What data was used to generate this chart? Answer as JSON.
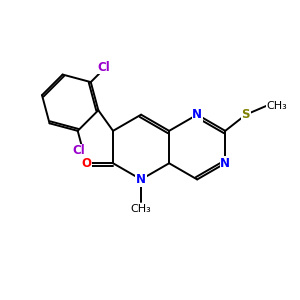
{
  "background_color": "#ffffff",
  "figsize": [
    3.0,
    3.0
  ],
  "dpi": 100,
  "atom_colors": {
    "N": "#0000ff",
    "O": "#ff0000",
    "Cl": "#9900cc",
    "S": "#808000",
    "C": "#000000"
  },
  "bond_color": "#000000",
  "bond_lw": 1.4,
  "xlim": [
    0,
    10
  ],
  "ylim": [
    0,
    10
  ]
}
